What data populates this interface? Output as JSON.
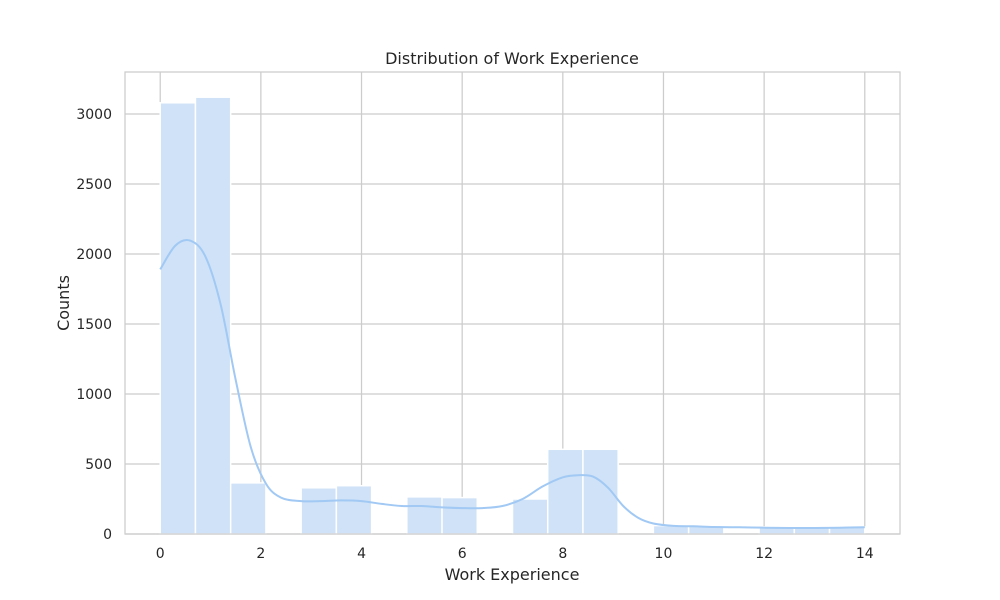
{
  "chart_data": {
    "type": "bar",
    "title": "Distribution of Work Experience",
    "xlabel": "Work Experience",
    "ylabel": "Counts",
    "xlim": [
      -0.7,
      14.7
    ],
    "ylim": [
      0,
      3300
    ],
    "xticks": [
      "0",
      "2",
      "4",
      "6",
      "8",
      "10",
      "12",
      "14"
    ],
    "xtick_values": [
      0,
      2,
      4,
      6,
      8,
      10,
      12,
      14
    ],
    "yticks": [
      "0",
      "500",
      "1000",
      "1500",
      "2000",
      "2500",
      "3000"
    ],
    "ytick_values": [
      0,
      500,
      1000,
      1500,
      2000,
      2500,
      3000
    ],
    "grid": true,
    "bin_width": 0.7,
    "bins": [
      {
        "start": 0.0,
        "value": 3080
      },
      {
        "start": 0.7,
        "value": 3120
      },
      {
        "start": 1.4,
        "value": 365
      },
      {
        "start": 2.1,
        "value": 0
      },
      {
        "start": 2.8,
        "value": 330
      },
      {
        "start": 3.5,
        "value": 345
      },
      {
        "start": 4.2,
        "value": 0
      },
      {
        "start": 4.9,
        "value": 265
      },
      {
        "start": 5.6,
        "value": 260
      },
      {
        "start": 6.3,
        "value": 0
      },
      {
        "start": 7.0,
        "value": 250
      },
      {
        "start": 7.7,
        "value": 605
      },
      {
        "start": 8.4,
        "value": 605
      },
      {
        "start": 9.1,
        "value": 0
      },
      {
        "start": 9.8,
        "value": 60
      },
      {
        "start": 10.5,
        "value": 60
      },
      {
        "start": 11.2,
        "value": 0
      },
      {
        "start": 11.9,
        "value": 50
      },
      {
        "start": 12.6,
        "value": 50
      },
      {
        "start": 13.3,
        "value": 50
      }
    ],
    "kde": {
      "x": [
        0,
        0.3,
        0.6,
        0.9,
        1.2,
        1.5,
        1.8,
        2.1,
        2.4,
        2.8,
        3.2,
        3.6,
        4.0,
        4.4,
        4.8,
        5.2,
        5.6,
        6.0,
        6.4,
        6.8,
        7.2,
        7.6,
        8.0,
        8.3,
        8.6,
        8.9,
        9.2,
        9.5,
        9.8,
        10.2,
        10.6,
        11.0,
        11.5,
        12.0,
        12.5,
        13.0,
        13.5,
        14.0
      ],
      "y": [
        1890,
        2060,
        2095,
        1980,
        1640,
        1100,
        620,
        360,
        260,
        235,
        235,
        240,
        235,
        215,
        200,
        200,
        190,
        185,
        185,
        200,
        250,
        340,
        405,
        420,
        410,
        330,
        200,
        115,
        75,
        58,
        55,
        50,
        48,
        45,
        43,
        43,
        45,
        48
      ]
    },
    "colors": {
      "bar_fill": "#cfe2f7",
      "bar_edge": "#ffffff",
      "kde_line": "#a1c9f4",
      "grid": "#cccccc",
      "frame": "#cccccc",
      "text": "#262626"
    }
  }
}
